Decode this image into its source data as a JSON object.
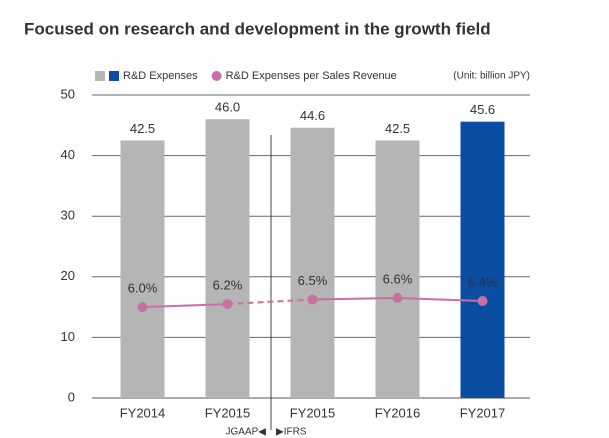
{
  "chart_data": {
    "type": "bar",
    "title": "Focused on research and development in the growth field",
    "note": "(Unit: billion JPY)",
    "categories": [
      "FY2014",
      "FY2015",
      "FY2015",
      "FY2016",
      "FY2017"
    ],
    "series": [
      {
        "name": "R&D Expenses",
        "type": "bar",
        "colors": [
          "#b5b5b5",
          "#b5b5b5",
          "#b5b5b5",
          "#b5b5b5",
          "#0b4da2"
        ],
        "values": [
          42.5,
          46.0,
          44.6,
          42.5,
          45.6
        ],
        "value_labels": [
          "42.5",
          "46.0",
          "44.6",
          "42.5",
          "45.6"
        ]
      },
      {
        "name": "R&D Expenses per Sales Revenue",
        "type": "line",
        "axis": "y2",
        "color": "#c86fa3",
        "values": [
          6.0,
          6.2,
          6.5,
          6.6,
          6.4
        ],
        "value_labels": [
          "6.0%",
          "6.2%",
          "6.5%",
          "6.6%",
          "6.4%"
        ],
        "dashed_segments": [
          1
        ]
      }
    ],
    "ylim": [
      0,
      50
    ],
    "yticks": [
      0,
      10,
      20,
      30,
      40,
      50
    ],
    "y2lim": [
      0,
      20
    ],
    "grid": true,
    "annotations": [
      "JGAAP◀",
      "▶IFRS"
    ]
  }
}
